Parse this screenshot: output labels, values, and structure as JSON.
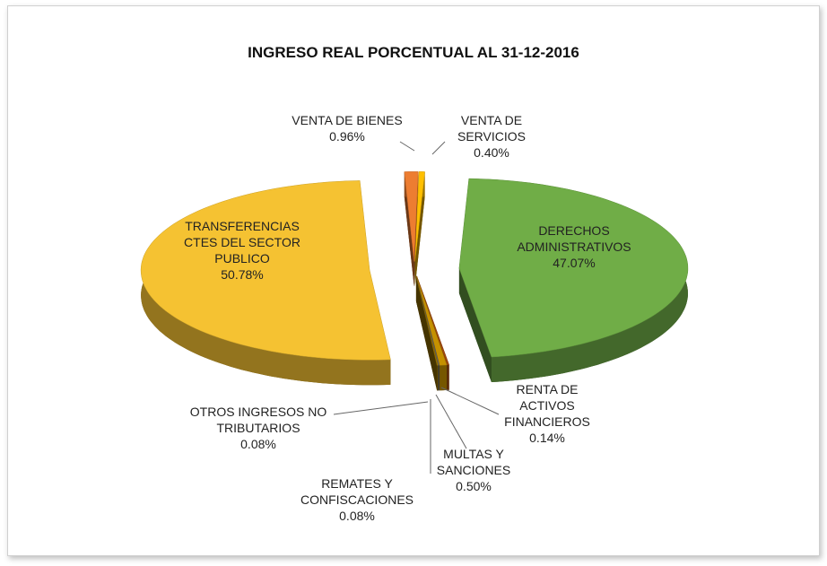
{
  "chart_data": {
    "type": "pie3d",
    "title": "INGRESO REAL PORCENTUAL AL 31-12-2016",
    "categories": [
      "VENTA DE BIENES",
      "VENTA DE SERVICIOS",
      "DERECHOS ADMINISTRATIVOS",
      "RENTA DE ACTIVOS FINANCIEROS",
      "MULTAS Y SANCIONES",
      "REMATES Y CONFISCACIONES",
      "OTROS INGRESOS NO TRIBUTARIOS",
      "TRANSFERENCIAS CTES DEL SECTOR PUBLICO"
    ],
    "values": [
      0.96,
      0.4,
      47.07,
      0.14,
      0.5,
      0.08,
      0.08,
      50.78
    ],
    "value_labels": [
      "0.96%",
      "0.40%",
      "47.07%",
      "0.14%",
      "0.50%",
      "0.08%",
      "0.08%",
      "50.78%"
    ],
    "colors": [
      "#ed7d31",
      "#ffc000",
      "#70ad47",
      "#9e480e",
      "#c59100",
      "#636363",
      "#997300",
      "#f5c232"
    ]
  }
}
